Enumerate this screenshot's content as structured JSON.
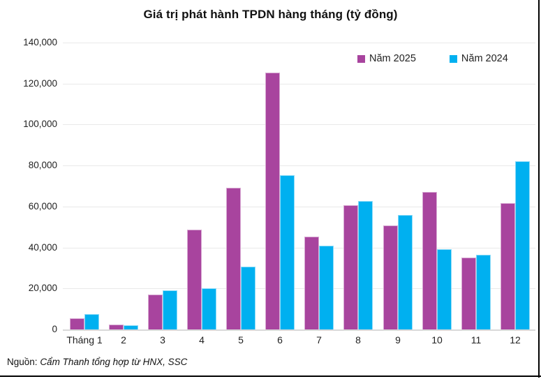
{
  "source": {
    "prefix": "Nguồn:",
    "text": "Cẩm Thanh tổng hợp từ HNX, SSC"
  },
  "chart_data": {
    "type": "bar",
    "title": "Giá trị phát hành TPDN hàng tháng (tỷ đồng)",
    "categories": [
      "Tháng 1",
      "2",
      "3",
      "4",
      "5",
      "6",
      "7",
      "8",
      "9",
      "10",
      "11",
      "12"
    ],
    "series": [
      {
        "name": "Năm 2025",
        "color": "#A8449E",
        "values": [
          5500,
          2400,
          17100,
          48800,
          69200,
          125400,
          45300,
          60500,
          50800,
          67000,
          35100,
          61800
        ]
      },
      {
        "name": "Năm 2024",
        "color": "#00B0F0",
        "values": [
          7600,
          2200,
          19100,
          20000,
          30500,
          75200,
          40800,
          62700,
          56000,
          39100,
          36400,
          82000
        ]
      }
    ],
    "xlabel": "",
    "ylabel": "",
    "ylim": [
      0,
      140000
    ],
    "ytick_step": 20000,
    "yticks": [
      "0",
      "20,000",
      "40,000",
      "60,000",
      "80,000",
      "100,000",
      "120,000",
      "140,000"
    ],
    "grid": "horizontal",
    "legend_position": "top-right"
  }
}
